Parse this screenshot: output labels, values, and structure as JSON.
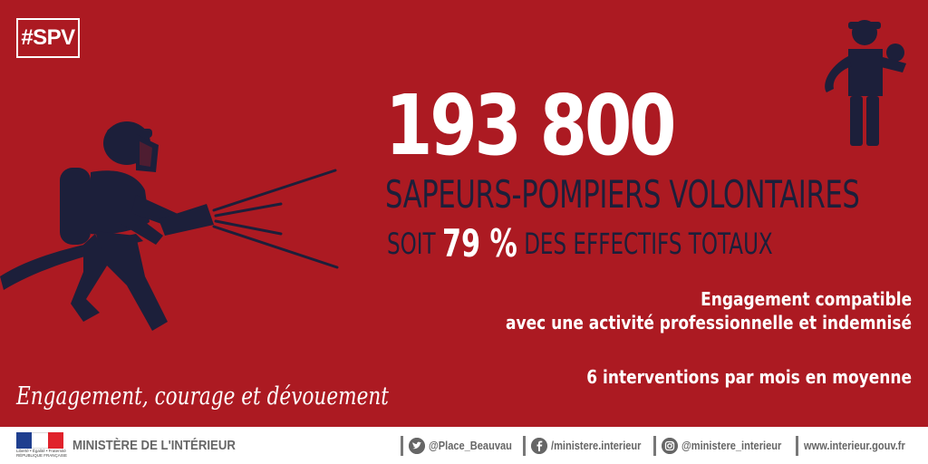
{
  "hashtag": "#SPV",
  "headline": {
    "number": "193 800",
    "title": "SAPEURS-POMPIERS VOLONTAIRES",
    "sub_prefix": "SOIT",
    "sub_percent": "79 %",
    "sub_suffix": "DES EFFECTIFS TOTAUX"
  },
  "notes": {
    "line1": "Engagement compatible",
    "line2": "avec une activité professionnelle et indemnisé",
    "line3": "6 interventions par mois en moyenne"
  },
  "tagline": "Engagement, courage et dévouement",
  "footer": {
    "logo_text": "Liberté • Égalité • Fraternité",
    "logo_text2": "RÉPUBLIQUE FRANÇAISE",
    "ministry": "MINISTÈRE DE L'INTÉRIEUR",
    "twitter": "@Place_Beauvau",
    "facebook": "/ministere.interieur",
    "instagram": "@ministere_interieur",
    "website": "www.interieur.gouv.fr"
  },
  "colors": {
    "background": "#ac1a22",
    "navy": "#1c1f3a",
    "white": "#ffffff"
  },
  "icons": [
    "firefighter-hose-icon",
    "rescuer-carrying-child-icon",
    "twitter-icon",
    "facebook-icon",
    "instagram-icon"
  ]
}
